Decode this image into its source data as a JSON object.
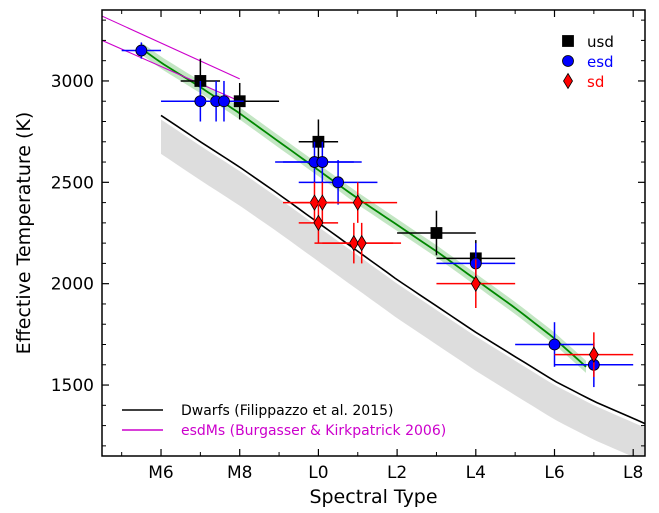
{
  "chart_data": {
    "type": "scatter",
    "xlabel": "Spectral Type",
    "ylabel": "Effective Temperature (K)",
    "xlim": [
      4.5,
      18.3
    ],
    "ylim": [
      1150,
      3350
    ],
    "x_ticks": [
      {
        "value": 6,
        "label": "M6"
      },
      {
        "value": 8,
        "label": "M8"
      },
      {
        "value": 10,
        "label": "L0"
      },
      {
        "value": 12,
        "label": "L2"
      },
      {
        "value": 14,
        "label": "L4"
      },
      {
        "value": 16,
        "label": "L6"
      },
      {
        "value": 18,
        "label": "L8"
      }
    ],
    "y_ticks": [
      1500,
      2000,
      2500,
      3000
    ],
    "grid": false,
    "legend_upper": {
      "placement": "top-right",
      "entries": [
        {
          "label": "usd",
          "marker": "square",
          "color": "#000000"
        },
        {
          "label": "esd",
          "marker": "circle",
          "color": "#0000ff"
        },
        {
          "label": "sd",
          "marker": "diamond",
          "color": "#ff0000"
        }
      ]
    },
    "legend_lower": {
      "placement": "bottom-left",
      "entries": [
        {
          "label": "Dwarfs (Filippazzo et al. 2015)",
          "color": "#000000"
        },
        {
          "label": "esdMs (Burgasser & Kirkpatrick 2006)",
          "color": "#cc00cc"
        }
      ]
    },
    "series": [
      {
        "name": "usd",
        "marker": "square",
        "color": "#000000",
        "points": [
          {
            "x": 7.0,
            "y": 3000,
            "xerr": 0.5,
            "yerr": 110
          },
          {
            "x": 8.0,
            "y": 2900,
            "xerr": 1.0,
            "yerr": 90
          },
          {
            "x": 10.0,
            "y": 2700,
            "xerr": 0.5,
            "yerr": 110
          },
          {
            "x": 13.0,
            "y": 2250,
            "xerr": 1.0,
            "yerr": 110
          },
          {
            "x": 14.0,
            "y": 2125,
            "xerr": 1.0,
            "yerr": 90
          }
        ]
      },
      {
        "name": "esd",
        "marker": "circle",
        "color": "#0000ff",
        "points": [
          {
            "x": 5.5,
            "y": 3150,
            "xerr": 0.5,
            "yerr": 40
          },
          {
            "x": 7.0,
            "y": 2900,
            "xerr": 1.0,
            "yerr": 100
          },
          {
            "x": 7.4,
            "y": 2900,
            "xerr": 0.5,
            "yerr": 100
          },
          {
            "x": 7.6,
            "y": 2900,
            "xerr": 0.5,
            "yerr": 100
          },
          {
            "x": 9.9,
            "y": 2600,
            "xerr": 1.0,
            "yerr": 100
          },
          {
            "x": 10.1,
            "y": 2600,
            "xerr": 1.0,
            "yerr": 100
          },
          {
            "x": 10.5,
            "y": 2500,
            "xerr": 1.0,
            "yerr": 110
          },
          {
            "x": 14.0,
            "y": 2100,
            "xerr": 1.0,
            "yerr": 100
          },
          {
            "x": 16.0,
            "y": 1700,
            "xerr": 1.0,
            "yerr": 110
          },
          {
            "x": 17.0,
            "y": 1600,
            "xerr": 1.0,
            "yerr": 110
          }
        ]
      },
      {
        "name": "sd",
        "marker": "diamond",
        "color": "#ff0000",
        "points": [
          {
            "x": 9.9,
            "y": 2400,
            "xerr": 0.5,
            "yerr": 100
          },
          {
            "x": 10.1,
            "y": 2400,
            "xerr": 1.0,
            "yerr": 100
          },
          {
            "x": 11.0,
            "y": 2400,
            "xerr": 1.0,
            "yerr": 100
          },
          {
            "x": 10.0,
            "y": 2300,
            "xerr": 0.5,
            "yerr": 100
          },
          {
            "x": 10.9,
            "y": 2200,
            "xerr": 1.0,
            "yerr": 100
          },
          {
            "x": 11.1,
            "y": 2200,
            "xerr": 1.0,
            "yerr": 100
          },
          {
            "x": 14.0,
            "y": 2000,
            "xerr": 1.0,
            "yerr": 120
          },
          {
            "x": 17.0,
            "y": 1650,
            "xerr": 1.0,
            "yerr": 110
          }
        ]
      }
    ],
    "curves": {
      "dwarfs": {
        "color": "#000000",
        "x": [
          6.0,
          7.0,
          8.0,
          9.0,
          10.0,
          11.0,
          12.0,
          13.0,
          14.0,
          15.0,
          16.0,
          17.0,
          18.3
        ],
        "y": [
          2830,
          2700,
          2575,
          2440,
          2300,
          2160,
          2020,
          1890,
          1760,
          1640,
          1520,
          1420,
          1310
        ],
        "band_lower_offset": 190,
        "band_upper_offset": 20,
        "band_color": "#dddddd"
      },
      "esd_fit": {
        "color": "#008800",
        "band_color": "#c3e6c3",
        "band_halfwidth": 30,
        "x": [
          5.5,
          6.0,
          7.0,
          8.0,
          9.0,
          10.0,
          11.0,
          12.0,
          13.0,
          14.0,
          15.0,
          16.0,
          16.8
        ],
        "y": [
          3160,
          3090,
          2970,
          2840,
          2700,
          2560,
          2420,
          2290,
          2160,
          2020,
          1880,
          1730,
          1590
        ]
      },
      "esdms_lines": {
        "color": "#cc00cc",
        "lines": [
          {
            "x": [
              4.5,
              8.0
            ],
            "y": [
              3320,
              3010
            ]
          },
          {
            "x": [
              4.5,
              8.0
            ],
            "y": [
              3200,
              2900
            ]
          }
        ]
      }
    }
  }
}
